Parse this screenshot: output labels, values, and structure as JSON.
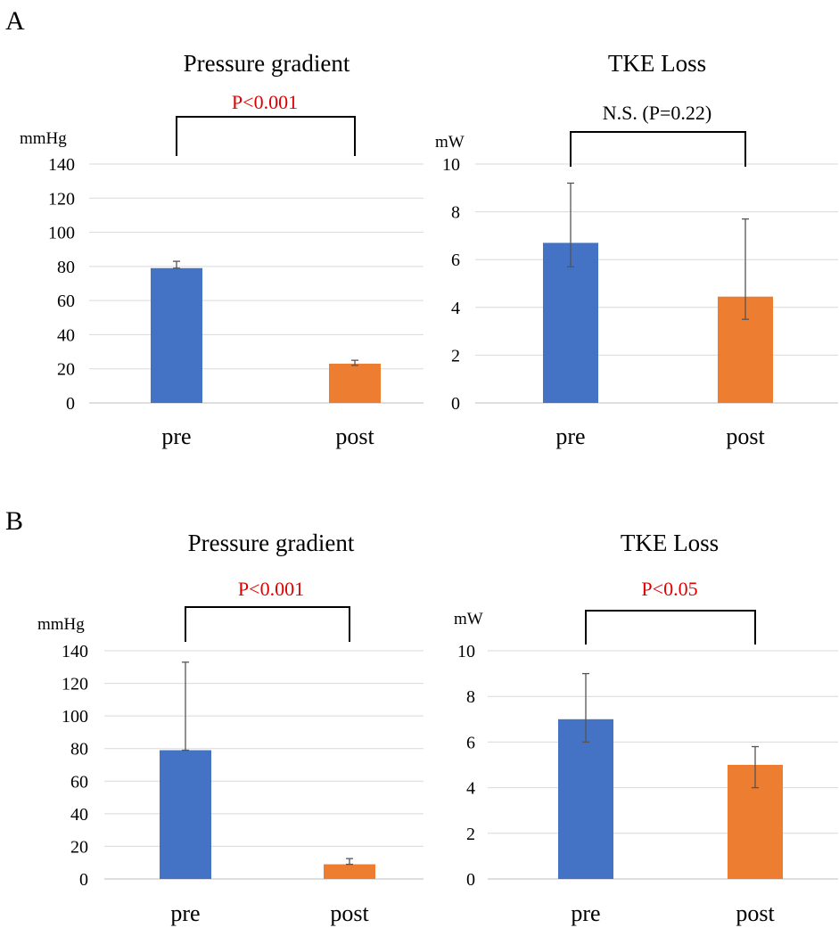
{
  "panels": {
    "a": "A",
    "b": "B"
  },
  "chart_data": [
    {
      "type": "bar",
      "panel": "A",
      "title": "Pressure gradient",
      "ylabel": "mmHg",
      "categories": [
        "pre",
        "post"
      ],
      "values": [
        79,
        23
      ],
      "error_upper": [
        83,
        25
      ],
      "error_lower": [
        79,
        22
      ],
      "colors": [
        "#4472c4",
        "#ed7d31"
      ],
      "ylim": [
        0,
        140
      ],
      "yticks": [
        0,
        20,
        40,
        60,
        80,
        100,
        120,
        140
      ],
      "significance": {
        "label": "P<0.001",
        "color": "#e00000"
      }
    },
    {
      "type": "bar",
      "panel": "A",
      "title": "TKE Loss",
      "ylabel": "mW",
      "categories": [
        "pre",
        "post"
      ],
      "values": [
        6.7,
        4.45
      ],
      "error_upper": [
        9.2,
        7.7
      ],
      "error_lower": [
        5.7,
        3.5
      ],
      "colors": [
        "#4472c4",
        "#ed7d31"
      ],
      "ylim": [
        0,
        10
      ],
      "yticks": [
        0,
        2,
        4,
        6,
        8,
        10
      ],
      "significance": {
        "label": "N.S. (P=0.22)",
        "color": "#000000"
      }
    },
    {
      "type": "bar",
      "panel": "B",
      "title": "Pressure gradient",
      "ylabel": "mmHg",
      "categories": [
        "pre",
        "post"
      ],
      "values": [
        79,
        9
      ],
      "error_upper": [
        133,
        12.5
      ],
      "error_lower": [
        79,
        9
      ],
      "colors": [
        "#4472c4",
        "#ed7d31"
      ],
      "ylim": [
        0,
        140
      ],
      "yticks": [
        0,
        20,
        40,
        60,
        80,
        100,
        120,
        140
      ],
      "significance": {
        "label": "P<0.001",
        "color": "#e00000"
      }
    },
    {
      "type": "bar",
      "panel": "B",
      "title": "TKE Loss",
      "ylabel": "mW",
      "categories": [
        "pre",
        "post"
      ],
      "values": [
        7.0,
        5.0
      ],
      "error_upper": [
        9.0,
        5.8
      ],
      "error_lower": [
        6.0,
        4.0
      ],
      "colors": [
        "#4472c4",
        "#ed7d31"
      ],
      "ylim": [
        0,
        10
      ],
      "yticks": [
        0,
        2,
        4,
        6,
        8,
        10
      ],
      "significance": {
        "label": "P<0.05",
        "color": "#e00000"
      }
    }
  ]
}
